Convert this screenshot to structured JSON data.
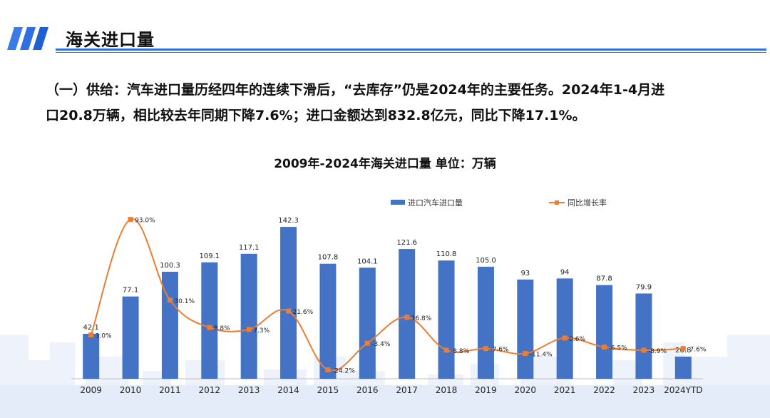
{
  "page": {
    "title": "海关进口量",
    "paragraph_line1": "（一）供给：汽车进口量历经四年的连续下滑后，“去库存”仍是2024年的主要任务。2024年1-4月进",
    "paragraph_line2": "口20.8万辆，相比较去年同期下降7.6%；进口金额达到832.8亿元，同比下降17.1%。"
  },
  "colors": {
    "bar": "#4472C4",
    "line": "#ED7D31",
    "header_accent": "#2F6FE0"
  },
  "chart_data": {
    "type": "bar",
    "title": "2009年-2024年海关进口量 单位：万辆",
    "categories": [
      "2009",
      "2010",
      "2011",
      "2012",
      "2013",
      "2014",
      "2015",
      "2016",
      "2017",
      "2018",
      "2019",
      "2020",
      "2021",
      "2022",
      "2023",
      "2024YTD"
    ],
    "series": [
      {
        "name": "进口汽车进口量",
        "type": "bar",
        "values": [
          42.1,
          77.1,
          100.3,
          109.1,
          117.1,
          142.3,
          107.8,
          104.1,
          121.6,
          110.8,
          105.0,
          93,
          94,
          87.8,
          79.9,
          20.8
        ],
        "labels": [
          "42.1",
          "77.1",
          "100.3",
          "109.1",
          "117.1",
          "142.3",
          "107.8",
          "104.1",
          "121.6",
          "110.8",
          "105.0",
          "93",
          "94",
          "87.8",
          "79.9",
          "20.8"
        ]
      },
      {
        "name": "同比增长率",
        "type": "line",
        "values": [
          3.0,
          93.0,
          30.1,
          8.8,
          7.3,
          21.6,
          -24.2,
          -3.4,
          16.8,
          -8.8,
          -7.6,
          -11.4,
          0.6,
          -6.5,
          -8.9,
          -7.6
        ],
        "labels": [
          "3.0%",
          "93.0%",
          "30.1%",
          "8.8%",
          "7.3%",
          "21.6%",
          "-24.2%",
          "-3.4%",
          "16.8%",
          "-8.8%",
          "-7.6%",
          "-11.4%",
          "0.6%",
          "-6.5%",
          "-8.9%",
          "-7.6%"
        ]
      }
    ],
    "legend_position": "top",
    "grid": false,
    "ylim_bar": [
      0,
      160
    ],
    "ylim_line": [
      -40,
      100
    ]
  }
}
